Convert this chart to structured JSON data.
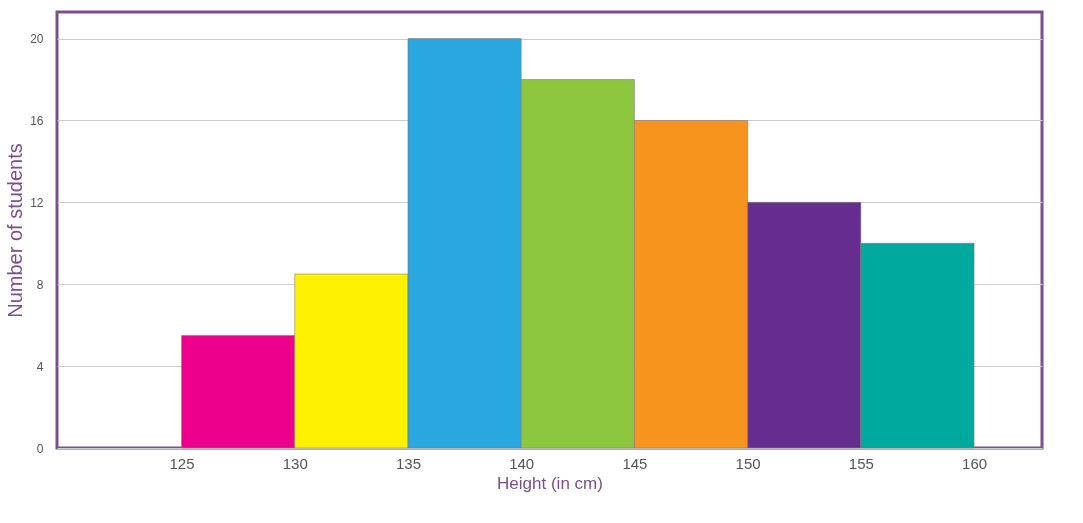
{
  "chart_data": {
    "type": "histogram",
    "xlabel": "Height (in cm)",
    "ylabel": "Number of students",
    "bins": [
      125,
      130,
      135,
      140,
      145,
      150,
      155,
      160
    ],
    "values": [
      5.5,
      8.5,
      20,
      18,
      16,
      12,
      10
    ],
    "colors": [
      "#ec008c",
      "#fff200",
      "#29a8e0",
      "#8dc63f",
      "#f7941d",
      "#662d91",
      "#00a99d"
    ],
    "xlim": [
      119.5,
      163
    ],
    "xticks": [
      125,
      130,
      135,
      140,
      145,
      150,
      155,
      160
    ],
    "ylim": [
      0,
      21.3
    ],
    "yticks": [
      0,
      4,
      8,
      12,
      16,
      20
    ],
    "grid": "y"
  }
}
